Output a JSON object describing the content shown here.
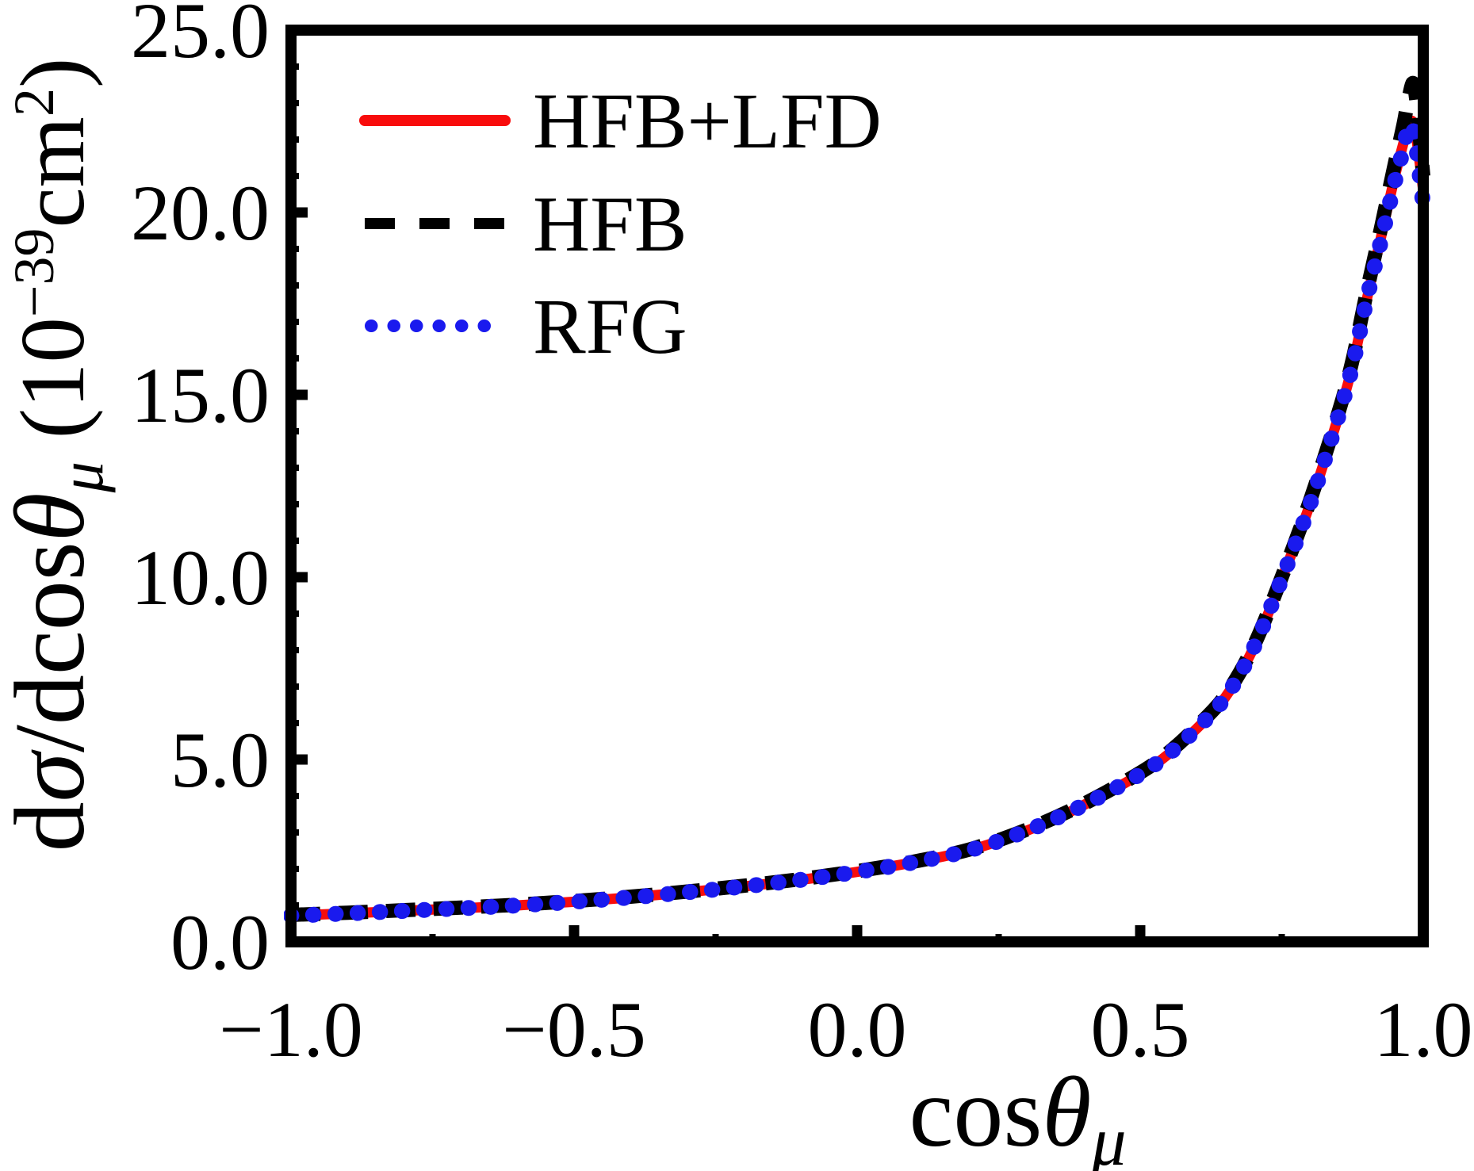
{
  "figure": {
    "background": "#ffffff",
    "frame_color": "#000000"
  },
  "legend": {
    "items": [
      {
        "label": "HFB+LFD"
      },
      {
        "label": "HFB"
      },
      {
        "label": "RFG"
      }
    ]
  },
  "axis_labels": {
    "x_main": "cos",
    "x_theta": "θ",
    "x_sub": "μ",
    "y_d1": "d",
    "y_sigma": "σ",
    "y_dcos": "/dcos",
    "y_theta": "θ",
    "y_sub": "μ",
    "y_open": " (10",
    "y_sup1": "−39",
    "y_cm": "cm",
    "y_sup2": "2",
    "y_close": ")"
  },
  "chart_data": {
    "type": "line",
    "title": "",
    "xlabel": "cos θ_μ",
    "ylabel": "dσ/dcosθ_μ (10^−39 cm²)",
    "xlim": [
      -1.0,
      1.0
    ],
    "ylim": [
      0.0,
      25.0
    ],
    "grid": false,
    "legend_position": "upper-left",
    "xtick_values": [
      -1.0,
      -0.5,
      0.0,
      0.5,
      1.0
    ],
    "xtick_labels": [
      "−1.0",
      "−0.5",
      "0.0",
      "0.5",
      "1.0"
    ],
    "xminor_values": [
      -0.75,
      -0.25,
      0.25,
      0.75
    ],
    "ytick_values": [
      0.0,
      5.0,
      10.0,
      15.0,
      20.0,
      25.0
    ],
    "ytick_labels": [
      "0.0",
      "5.0",
      "10.0",
      "15.0",
      "20.0",
      "25.0"
    ],
    "yminor_step": 1.0,
    "x": [
      -1.0,
      -0.9,
      -0.8,
      -0.7,
      -0.6,
      -0.5,
      -0.4,
      -0.3,
      -0.2,
      -0.1,
      0.0,
      0.1,
      0.2,
      0.3,
      0.4,
      0.5,
      0.55,
      0.6,
      0.65,
      0.7,
      0.75,
      0.8,
      0.85,
      0.875,
      0.9,
      0.925,
      0.95,
      0.965,
      0.975,
      0.985,
      1.0
    ],
    "series": [
      {
        "name": "HFB+LFD",
        "color": "#f80c0c",
        "style": "solid",
        "values": [
          0.72,
          0.78,
          0.85,
          0.92,
          1.0,
          1.1,
          1.22,
          1.36,
          1.52,
          1.7,
          1.92,
          2.18,
          2.52,
          3.05,
          3.75,
          4.6,
          5.15,
          5.85,
          6.7,
          8.05,
          9.95,
          12.0,
          14.4,
          15.8,
          17.6,
          19.3,
          21.0,
          21.9,
          22.45,
          22.3,
          20.6
        ]
      },
      {
        "name": "HFB",
        "color": "#000000",
        "style": "dashed",
        "values": [
          0.74,
          0.8,
          0.87,
          0.94,
          1.02,
          1.12,
          1.24,
          1.38,
          1.54,
          1.72,
          1.94,
          2.2,
          2.54,
          3.08,
          3.78,
          4.64,
          5.19,
          5.9,
          6.75,
          8.1,
          10.0,
          12.1,
          14.5,
          15.95,
          17.8,
          19.55,
          21.35,
          22.4,
          23.2,
          23.4,
          21.0
        ]
      },
      {
        "name": "RFG",
        "color": "#1a1aee",
        "style": "dotted",
        "values": [
          0.72,
          0.78,
          0.85,
          0.92,
          1.0,
          1.1,
          1.22,
          1.36,
          1.52,
          1.7,
          1.92,
          2.18,
          2.52,
          3.05,
          3.75,
          4.6,
          5.15,
          5.85,
          6.7,
          8.05,
          9.95,
          12.0,
          14.4,
          15.8,
          17.6,
          19.2,
          20.85,
          21.75,
          22.4,
          22.05,
          20.2
        ]
      }
    ]
  }
}
